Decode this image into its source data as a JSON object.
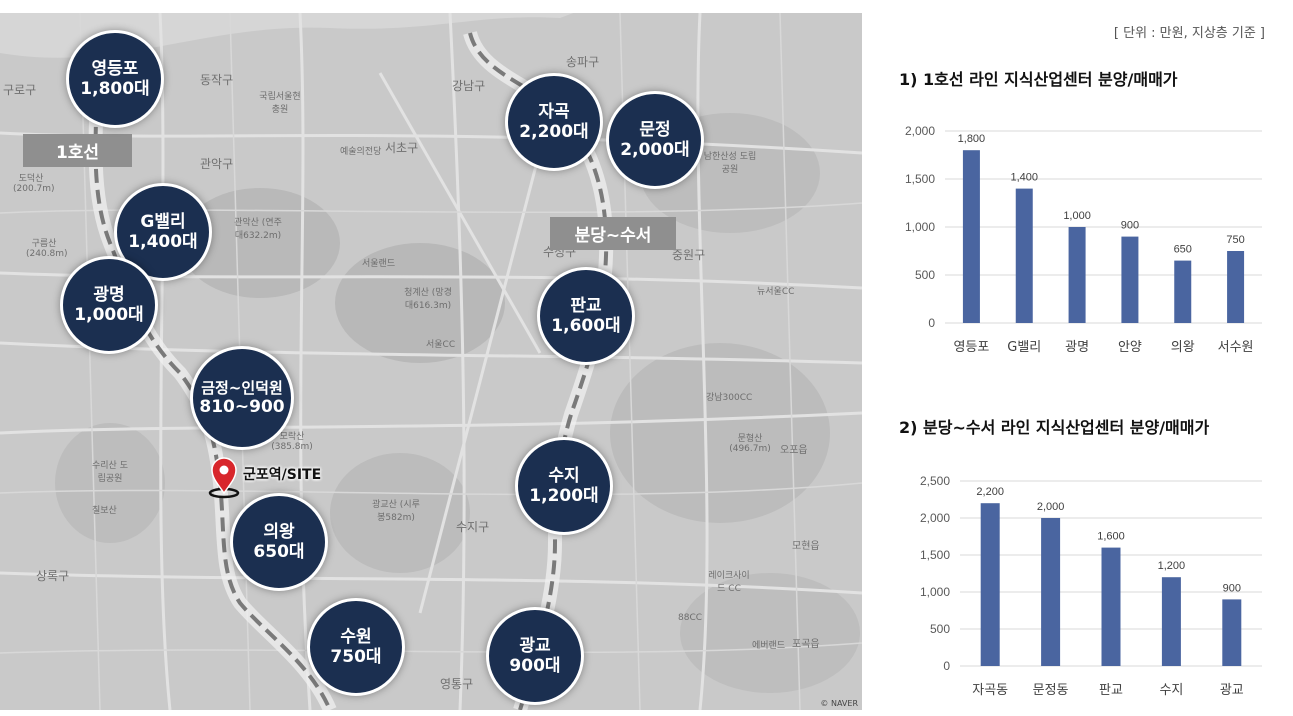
{
  "unit_note": "[ 단위 : 만원, 지상층 기준 ]",
  "map": {
    "line_labels": {
      "line1": "1호선",
      "bundang": "분당~수서"
    },
    "bubbles": {
      "yeongdeungpo": {
        "name": "영등포",
        "value": "1,800대"
      },
      "gvalley": {
        "name": "G밸리",
        "value": "1,400대"
      },
      "gwangmyeong": {
        "name": "광명",
        "value": "1,000대"
      },
      "geumjeong": {
        "name": "금정~인덕원",
        "value": "810~900"
      },
      "uiwang": {
        "name": "의왕",
        "value": "650대"
      },
      "suwon": {
        "name": "수원",
        "value": "750대"
      },
      "jagok": {
        "name": "자곡",
        "value": "2,200대"
      },
      "munjeong": {
        "name": "문정",
        "value": "2,000대"
      },
      "pangyo": {
        "name": "판교",
        "value": "1,600대"
      },
      "suji": {
        "name": "수지",
        "value": "1,200대"
      },
      "gwanggyo": {
        "name": "광교",
        "value": "900대"
      }
    },
    "site_label": "군포역/SITE",
    "districts": [
      "동작구",
      "관악구",
      "강남구",
      "서초구",
      "송파구",
      "구로구",
      "중원구",
      "수정구",
      "수지구",
      "상록구",
      "영통구"
    ],
    "place_labels": [
      "국립서울현충원",
      "예술의전당",
      "관악산 (연주대632.2m)",
      "청계산 (망경대616.3m)",
      "서울랜드",
      "남한산성 도립공원",
      "모락산 (385.8m)",
      "광교산 (시루봉582m)",
      "도덕산 (200.7m)",
      "구름산 (240.8m)",
      "수리산 도립공원",
      "칠보산",
      "문형산 (496.7m)",
      "오포읍",
      "모현읍",
      "서울CC",
      "뉴서울CC",
      "강남300CC",
      "레이크사이드 CC",
      "88CC",
      "에버랜드",
      "포곡읍"
    ],
    "copyright": "© NAVER"
  },
  "chart1_title": "1) 1호선 라인 지식산업센터 분양/매매가",
  "chart2_title": "2) 분당~수서 라인 지식산업센터 분양/매매가",
  "chart_data": [
    {
      "type": "bar",
      "title": "1) 1호선 라인 지식산업센터 분양/매매가",
      "categories": [
        "영등포",
        "G밸리",
        "광명",
        "안양",
        "의왕",
        "서수원"
      ],
      "values": [
        1800,
        1400,
        1000,
        900,
        650,
        750
      ],
      "data_labels": [
        "1,800",
        "1,400",
        "1,000",
        "900",
        "650",
        "750"
      ],
      "yticks": [
        "0",
        "500",
        "1,000",
        "1,500",
        "2,000"
      ],
      "ylim": [
        0,
        2000
      ],
      "grid": true,
      "color": "#4a65a0"
    },
    {
      "type": "bar",
      "title": "2) 분당~수서 라인 지식산업센터 분양/매매가",
      "categories": [
        "자곡동",
        "문정동",
        "판교",
        "수지",
        "광교"
      ],
      "values": [
        2200,
        2000,
        1600,
        1200,
        900
      ],
      "data_labels": [
        "2,200",
        "2,000",
        "1,600",
        "1,200",
        "900"
      ],
      "yticks": [
        "0",
        "500",
        "1,000",
        "1,500",
        "2,000",
        "2,500"
      ],
      "ylim": [
        0,
        2500
      ],
      "grid": true,
      "color": "#4a65a0"
    }
  ]
}
